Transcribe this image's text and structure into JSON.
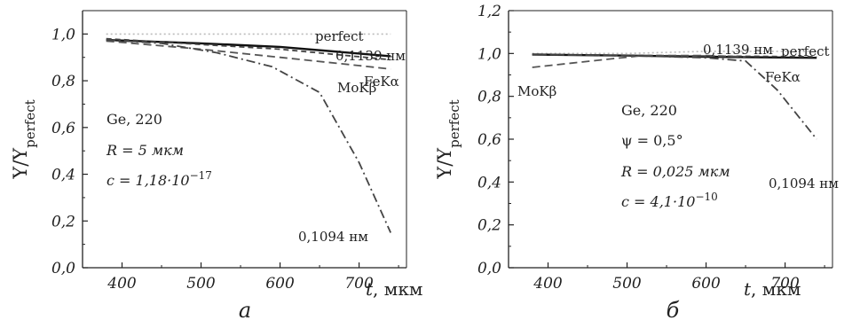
{
  "chart_data": [
    {
      "type": "line",
      "panel_label": "a",
      "xlabel": {
        "var": "t",
        "unit": ", мкм"
      },
      "ylabel": {
        "main": "Y/Y",
        "sub": "perfect"
      },
      "xlim": [
        350,
        760
      ],
      "ylim": [
        0.0,
        1.1
      ],
      "xticks": [
        "400",
        "500",
        "600",
        "700"
      ],
      "yticks": [
        "0,0",
        "0,2",
        "0,4",
        "0,6",
        "0,8",
        "1,0"
      ],
      "annotations": [
        "Ge, 220",
        "R = 5 мкм",
        "c = 1,18·10",
        "−17"
      ],
      "series": [
        {
          "name": "perfect",
          "style": "dotted",
          "color": "#bbbbbb",
          "x": [
            380,
            740
          ],
          "y": [
            1.0,
            1.0
          ]
        },
        {
          "name": "0,1139 нм",
          "style": "solid",
          "color": "#111111",
          "x": [
            380,
            500,
            600,
            740
          ],
          "y": [
            0.975,
            0.96,
            0.945,
            0.905
          ]
        },
        {
          "name": "FeKα",
          "style": "dashed-short",
          "color": "#444444",
          "x": [
            380,
            500,
            600,
            740
          ],
          "y": [
            0.98,
            0.955,
            0.935,
            0.89
          ]
        },
        {
          "name": "MoKβ",
          "style": "dashed",
          "color": "#555555",
          "x": [
            380,
            500,
            600,
            700,
            740
          ],
          "y": [
            0.97,
            0.935,
            0.9,
            0.865,
            0.85
          ]
        },
        {
          "name": "0,1094 нм",
          "style": "dashdot",
          "color": "#444444",
          "x": [
            380,
            450,
            520,
            590,
            650,
            700,
            740
          ],
          "y": [
            0.975,
            0.96,
            0.92,
            0.86,
            0.75,
            0.45,
            0.15
          ]
        }
      ]
    },
    {
      "type": "line",
      "panel_label": "б",
      "xlabel": {
        "var": "t",
        "unit": ", мкм"
      },
      "ylabel": {
        "main": "Y/Y",
        "sub": "perfect"
      },
      "xlim": [
        350,
        760
      ],
      "ylim": [
        0.0,
        1.2
      ],
      "xticks": [
        "400",
        "500",
        "600",
        "700"
      ],
      "yticks": [
        "0,0",
        "0,2",
        "0,4",
        "0,6",
        "0,8",
        "1,0",
        "1,2"
      ],
      "annotations": [
        "Ge, 220",
        "ψ = 0,5°",
        "R = 0,025 мкм",
        "c = 4,1·10",
        "−10"
      ],
      "series": [
        {
          "name": "perfect",
          "style": "dotted",
          "color": "#bbbbbb",
          "x": [
            380,
            500,
            600,
            740
          ],
          "y": [
            1.0,
            1.0,
            1.01,
            1.01
          ]
        },
        {
          "name": "0,1139 нм",
          "style": "solid",
          "color": "#111111",
          "x": [
            380,
            500,
            600,
            740
          ],
          "y": [
            0.995,
            0.99,
            0.985,
            0.98
          ]
        },
        {
          "name": "FeKα",
          "style": "dashed-short",
          "color": "#444444",
          "x": [
            380,
            500,
            600,
            740
          ],
          "y": [
            0.995,
            0.992,
            0.988,
            0.985
          ]
        },
        {
          "name": "MoKβ",
          "style": "dashed",
          "color": "#555555",
          "x": [
            380,
            430,
            480,
            520,
            600,
            650
          ],
          "y": [
            0.935,
            0.955,
            0.975,
            0.99,
            0.99,
            0.985
          ]
        },
        {
          "name": "0,1094 нм",
          "style": "dashdot",
          "color": "#444444",
          "x": [
            380,
            500,
            600,
            650,
            690,
            740
          ],
          "y": [
            0.995,
            0.99,
            0.98,
            0.965,
            0.83,
            0.6
          ]
        }
      ]
    }
  ]
}
